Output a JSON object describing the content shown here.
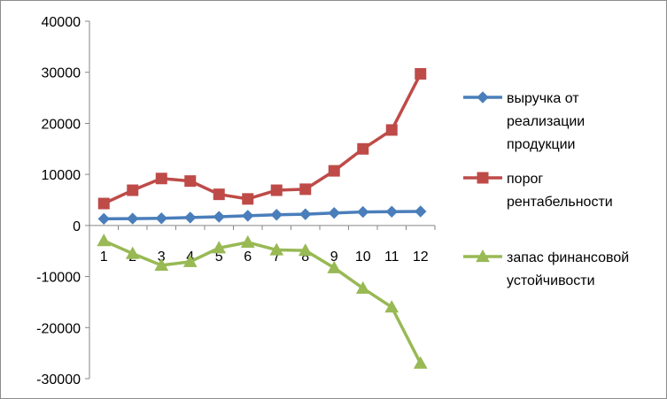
{
  "chart_data": {
    "type": "line",
    "title": "",
    "xlabel": "",
    "ylabel": "",
    "categories": [
      "1",
      "2",
      "3",
      "4",
      "5",
      "6",
      "7",
      "8",
      "9",
      "10",
      "11",
      "12"
    ],
    "ylim": [
      -30000,
      40000
    ],
    "y_ticks": [
      "40000",
      "30000",
      "20000",
      "10000",
      "0",
      "-10000",
      "-20000",
      "-30000"
    ],
    "grid": false,
    "legend_position": "right",
    "series": [
      {
        "name_lines": [
          "выручка от",
          "реализации",
          "продукции"
        ],
        "color": "#4a7ebb",
        "marker": "diamond",
        "values": [
          1300,
          1350,
          1400,
          1550,
          1700,
          1900,
          2100,
          2200,
          2450,
          2650,
          2700,
          2750
        ]
      },
      {
        "name_lines": [
          "порог",
          "рентабельности"
        ],
        "color": "#be4b48",
        "marker": "square",
        "values": [
          4300,
          6900,
          9200,
          8700,
          6100,
          5200,
          6900,
          7100,
          10700,
          15000,
          18700,
          29700
        ]
      },
      {
        "name_lines": [
          "запас финансовой",
          "устойчивости"
        ],
        "color": "#98b954",
        "marker": "triangle",
        "values": [
          -3000,
          -5500,
          -7800,
          -7100,
          -4400,
          -3300,
          -4800,
          -4900,
          -8300,
          -12300,
          -16000,
          -27000
        ]
      }
    ]
  }
}
